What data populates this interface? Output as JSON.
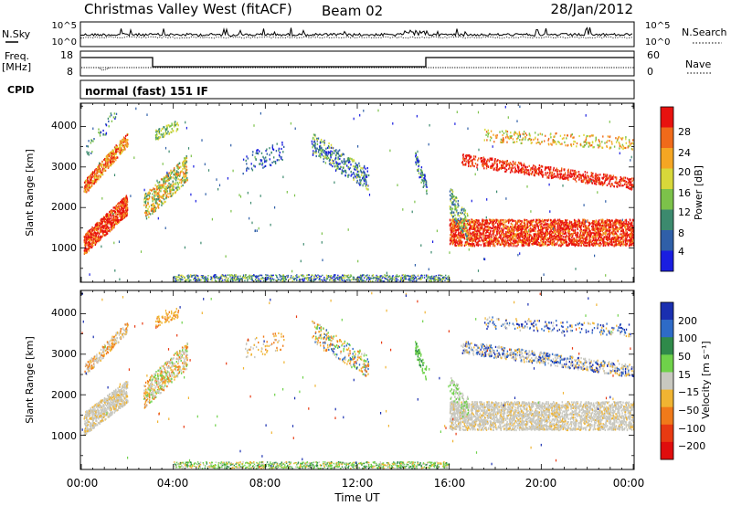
{
  "header": {
    "title": "Christmas Valley West (fitACF)",
    "beam": "Beam 02",
    "date": "28/Jan/2012"
  },
  "noise_panel": {
    "left_label": "N.Sky",
    "right_label": "N.Search",
    "left_ticks": [
      "10^5",
      "10^0"
    ],
    "right_ticks": [
      "10^5",
      "10^0"
    ]
  },
  "freq_panel": {
    "left_label_1": "Freq.",
    "left_label_2": "[MHz]",
    "right_label": "Nave",
    "left_ticks": [
      "18",
      "8"
    ],
    "right_ticks": [
      "60",
      "0"
    ]
  },
  "cpid_panel": {
    "left_label": "CPID",
    "mode": "normal (fast) 151 IF"
  },
  "chart_data": [
    {
      "type": "heatmap",
      "panel": "power",
      "ylabel": "Slant Range [km]",
      "xlabel": "",
      "x_range_hours": [
        0,
        24
      ],
      "ylim": [
        180,
        4550
      ],
      "yticks": [
        "1000",
        "2000",
        "3000",
        "4000"
      ],
      "colorbar_label": "Power [dB]",
      "colorbar_ticks": [
        "4",
        "8",
        "12",
        "16",
        "20",
        "24",
        "28"
      ],
      "colorbar_colors": [
        "#1a1ee0",
        "#2f5fa8",
        "#3c8a6e",
        "#7cc24a",
        "#d8d83a",
        "#f5a623",
        "#f06a1a",
        "#e8120f"
      ]
    },
    {
      "type": "heatmap",
      "panel": "velocity",
      "ylabel": "Slant Range [km]",
      "xlabel": "Time UT",
      "x_range_hours": [
        0,
        24
      ],
      "ylim": [
        180,
        4550
      ],
      "yticks": [
        "1000",
        "2000",
        "3000",
        "4000"
      ],
      "xticks": [
        "00:00",
        "04:00",
        "08:00",
        "12:00",
        "16:00",
        "20:00",
        "00:00"
      ],
      "colorbar_label": "Velocity [m s⁻¹]",
      "colorbar_ticks": [
        "200",
        "100",
        "50",
        "15",
        "−15",
        "−50",
        "−100",
        "−200"
      ],
      "colorbar_colors": [
        "#1a2fb0",
        "#2e6bc7",
        "#2f8a4a",
        "#6fd24a",
        "#c8c8c0",
        "#f0b432",
        "#f07a1a",
        "#e83a12",
        "#e00d0d"
      ]
    }
  ]
}
